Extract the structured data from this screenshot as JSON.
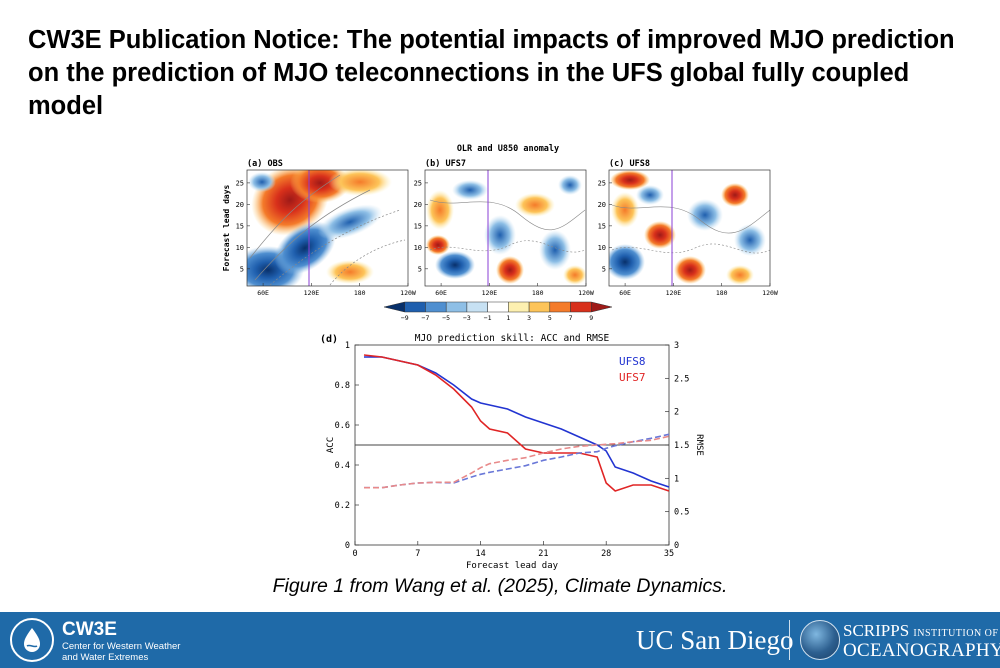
{
  "page": {
    "title": "CW3E Publication Notice: The potential impacts of improved MJO prediction on the prediction of MJO teleconnections in the UFS global fully coupled model",
    "caption": "Figure 1 from Wang et al. (2025), Climate Dynamics."
  },
  "footer": {
    "cw3e_name": "CW3E",
    "cw3e_sub": "Center for Western Weather and Water Extremes",
    "ucsd": "UC San Diego",
    "scripps_line1": "SCRIPPS",
    "scripps_institution": "INSTITUTION OF",
    "scripps_line2": "OCEANOGRAPHY",
    "colors": {
      "bar": "#1f6aa8",
      "text": "#ffffff"
    }
  },
  "chart_data": [
    {
      "type": "heatmap",
      "title": "OLR and U850 anomaly",
      "ylabel": "Forecast lead days",
      "yticks": [
        5,
        10,
        15,
        20,
        25
      ],
      "xticks": [
        "60E",
        "120E",
        "180",
        "120W"
      ],
      "panels": [
        {
          "label": "(a) OBS"
        },
        {
          "label": "(b) UFS7"
        },
        {
          "label": "(c) UFS8"
        }
      ],
      "colorbar": {
        "ticks": [
          -9,
          -7,
          -5,
          -3,
          -1,
          1,
          3,
          5,
          7,
          9
        ],
        "tick_labels": [
          "−9",
          "−7",
          "−5",
          "−3",
          "−1",
          "1",
          "3",
          "5",
          "7",
          "9"
        ],
        "colors": [
          "#08306b",
          "#1f5fae",
          "#4f8fd0",
          "#8ebfe6",
          "#c7e1f3",
          "#ffffff",
          "#fdf0b0",
          "#fdc459",
          "#f47b2a",
          "#d8301b",
          "#9e1a18"
        ]
      }
    },
    {
      "type": "line",
      "panel_label": "(d)",
      "title": "MJO prediction skill: ACC and RMSE",
      "xlabel": "Forecast lead day",
      "ylabel": "ACC",
      "y2label": "RMSE",
      "xlim": [
        0,
        35
      ],
      "ylim": [
        0,
        1
      ],
      "y2lim": [
        0,
        3
      ],
      "xticks": [
        0,
        7,
        14,
        21,
        28,
        35
      ],
      "yticks": [
        0,
        0.2,
        0.4,
        0.6,
        0.8,
        1
      ],
      "ytick_labels": [
        "0",
        "0.2",
        "0.4",
        "0.6",
        "0.8",
        "1"
      ],
      "y2ticks": [
        0,
        0.5,
        1,
        1.5,
        2,
        2.5,
        3
      ],
      "y2tick_labels": [
        "0",
        "0.5",
        "1",
        "1.5",
        "2",
        "2.5",
        "3"
      ],
      "reference_line": 0.5,
      "legend": [
        "UFS8",
        "UFS7"
      ],
      "x": [
        1,
        3,
        5,
        7,
        9,
        11,
        13,
        14,
        15,
        17,
        19,
        21,
        23,
        25,
        27,
        28,
        29,
        31,
        33,
        35
      ],
      "series": [
        {
          "name": "UFS8 ACC",
          "color": "#2234d1",
          "style": "solid",
          "axis": "left",
          "values": [
            0.94,
            0.94,
            0.92,
            0.9,
            0.86,
            0.8,
            0.73,
            0.71,
            0.7,
            0.68,
            0.64,
            0.61,
            0.58,
            0.54,
            0.5,
            0.47,
            0.39,
            0.36,
            0.32,
            0.29
          ]
        },
        {
          "name": "UFS7 ACC",
          "color": "#e02525",
          "style": "solid",
          "axis": "left",
          "values": [
            0.95,
            0.94,
            0.92,
            0.9,
            0.85,
            0.78,
            0.69,
            0.62,
            0.58,
            0.56,
            0.48,
            0.46,
            0.46,
            0.46,
            0.44,
            0.31,
            0.27,
            0.3,
            0.3,
            0.27
          ]
        },
        {
          "name": "UFS8 RMSE",
          "color": "#6a78d8",
          "style": "dashed",
          "axis": "right",
          "values": [
            0.86,
            0.86,
            0.9,
            0.93,
            0.94,
            0.93,
            1.02,
            1.06,
            1.09,
            1.14,
            1.19,
            1.27,
            1.32,
            1.38,
            1.4,
            1.45,
            1.49,
            1.55,
            1.6,
            1.66
          ]
        },
        {
          "name": "UFS7 RMSE",
          "color": "#e88a8a",
          "style": "dashed",
          "axis": "right",
          "values": [
            0.86,
            0.86,
            0.9,
            0.93,
            0.94,
            0.94,
            1.08,
            1.16,
            1.22,
            1.27,
            1.31,
            1.38,
            1.44,
            1.48,
            1.5,
            1.51,
            1.52,
            1.55,
            1.57,
            1.63
          ]
        }
      ]
    }
  ]
}
